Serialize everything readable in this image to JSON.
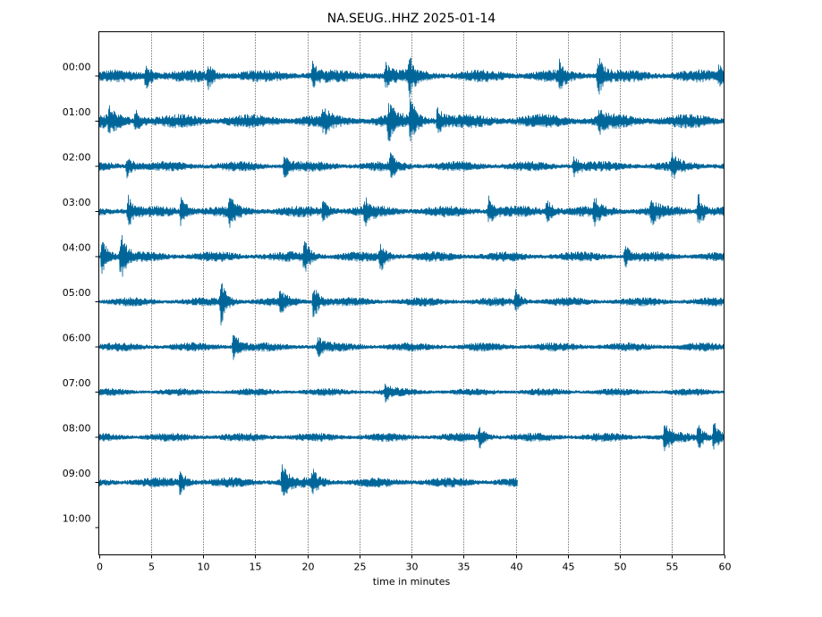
{
  "chart_data": {
    "type": "line",
    "title": "NA.SEUG..HHZ 2025-01-14",
    "xlabel": "time in minutes",
    "ylabel": "",
    "xlim": [
      0,
      60
    ],
    "x_ticks": [
      0,
      5,
      10,
      15,
      20,
      25,
      30,
      35,
      40,
      45,
      50,
      55,
      60
    ],
    "x_tick_labels": [
      "0",
      "5",
      "10",
      "15",
      "20",
      "25",
      "30",
      "35",
      "40",
      "45",
      "50",
      "55",
      "60"
    ],
    "y_tick_labels": [
      "00:00",
      "01:00",
      "02:00",
      "03:00",
      "04:00",
      "05:00",
      "06:00",
      "07:00",
      "08:00",
      "09:00",
      "10:00"
    ],
    "vertical_gridlines": true,
    "trace_color": "#00669a",
    "series": [
      {
        "hour": "00:00",
        "end_minute": 60,
        "noise_level": 1.0,
        "events": [
          {
            "minute": 4.5,
            "amp": 2.0
          },
          {
            "minute": 10.5,
            "amp": 1.6
          },
          {
            "minute": 20.5,
            "amp": 1.8
          },
          {
            "minute": 27.5,
            "amp": 1.8
          },
          {
            "minute": 29.8,
            "amp": 2.6
          },
          {
            "minute": 44.2,
            "amp": 1.8
          },
          {
            "minute": 47.9,
            "amp": 3.2
          },
          {
            "minute": 59.5,
            "amp": 1.6
          }
        ]
      },
      {
        "hour": "01:00",
        "end_minute": 60,
        "noise_level": 1.1,
        "events": [
          {
            "minute": 1.0,
            "amp": 1.8
          },
          {
            "minute": 3.5,
            "amp": 1.6
          },
          {
            "minute": 21.5,
            "amp": 1.6
          },
          {
            "minute": 27.8,
            "amp": 2.6
          },
          {
            "minute": 29.9,
            "amp": 3.2
          },
          {
            "minute": 32.5,
            "amp": 2.2
          },
          {
            "minute": 48.0,
            "amp": 1.6
          }
        ]
      },
      {
        "hour": "02:00",
        "end_minute": 60,
        "noise_level": 0.8,
        "events": [
          {
            "minute": 2.7,
            "amp": 1.8
          },
          {
            "minute": 17.8,
            "amp": 1.8
          },
          {
            "minute": 28.0,
            "amp": 1.5
          },
          {
            "minute": 45.6,
            "amp": 1.8
          },
          {
            "minute": 55.0,
            "amp": 1.8
          }
        ]
      },
      {
        "hour": "03:00",
        "end_minute": 60,
        "noise_level": 0.9,
        "events": [
          {
            "minute": 2.8,
            "amp": 2.4
          },
          {
            "minute": 7.9,
            "amp": 2.5
          },
          {
            "minute": 12.5,
            "amp": 2.0
          },
          {
            "minute": 21.5,
            "amp": 1.6
          },
          {
            "minute": 25.5,
            "amp": 1.8
          },
          {
            "minute": 37.4,
            "amp": 2.2
          },
          {
            "minute": 43.0,
            "amp": 1.9
          },
          {
            "minute": 47.5,
            "amp": 1.8
          },
          {
            "minute": 53.0,
            "amp": 1.8
          },
          {
            "minute": 57.5,
            "amp": 2.8
          }
        ]
      },
      {
        "hour": "04:00",
        "end_minute": 60,
        "noise_level": 0.8,
        "events": [
          {
            "minute": 0.3,
            "amp": 2.8
          },
          {
            "minute": 2.1,
            "amp": 3.8
          },
          {
            "minute": 19.7,
            "amp": 2.8
          },
          {
            "minute": 27.0,
            "amp": 2.2
          },
          {
            "minute": 50.5,
            "amp": 1.6
          }
        ]
      },
      {
        "hour": "05:00",
        "end_minute": 60,
        "noise_level": 0.7,
        "events": [
          {
            "minute": 11.7,
            "amp": 3.4
          },
          {
            "minute": 17.4,
            "amp": 1.8
          },
          {
            "minute": 20.6,
            "amp": 2.8
          },
          {
            "minute": 40.0,
            "amp": 1.5
          }
        ]
      },
      {
        "hour": "06:00",
        "end_minute": 60,
        "noise_level": 0.7,
        "events": [
          {
            "minute": 12.9,
            "amp": 2.8
          },
          {
            "minute": 21.0,
            "amp": 1.5
          }
        ]
      },
      {
        "hour": "07:00",
        "end_minute": 60,
        "noise_level": 0.6,
        "events": [
          {
            "minute": 27.5,
            "amp": 1.3
          }
        ]
      },
      {
        "hour": "08:00",
        "end_minute": 60,
        "noise_level": 0.7,
        "events": [
          {
            "minute": 36.5,
            "amp": 1.5
          },
          {
            "minute": 54.3,
            "amp": 2.4
          },
          {
            "minute": 57.5,
            "amp": 1.8
          },
          {
            "minute": 59.0,
            "amp": 2.4
          }
        ]
      },
      {
        "hour": "09:00",
        "end_minute": 40.2,
        "noise_level": 0.8,
        "events": [
          {
            "minute": 7.8,
            "amp": 1.8
          },
          {
            "minute": 17.6,
            "amp": 2.8
          },
          {
            "minute": 20.5,
            "amp": 1.6
          }
        ]
      },
      {
        "hour": "10:00",
        "end_minute": 0,
        "noise_level": 0,
        "events": []
      }
    ]
  }
}
